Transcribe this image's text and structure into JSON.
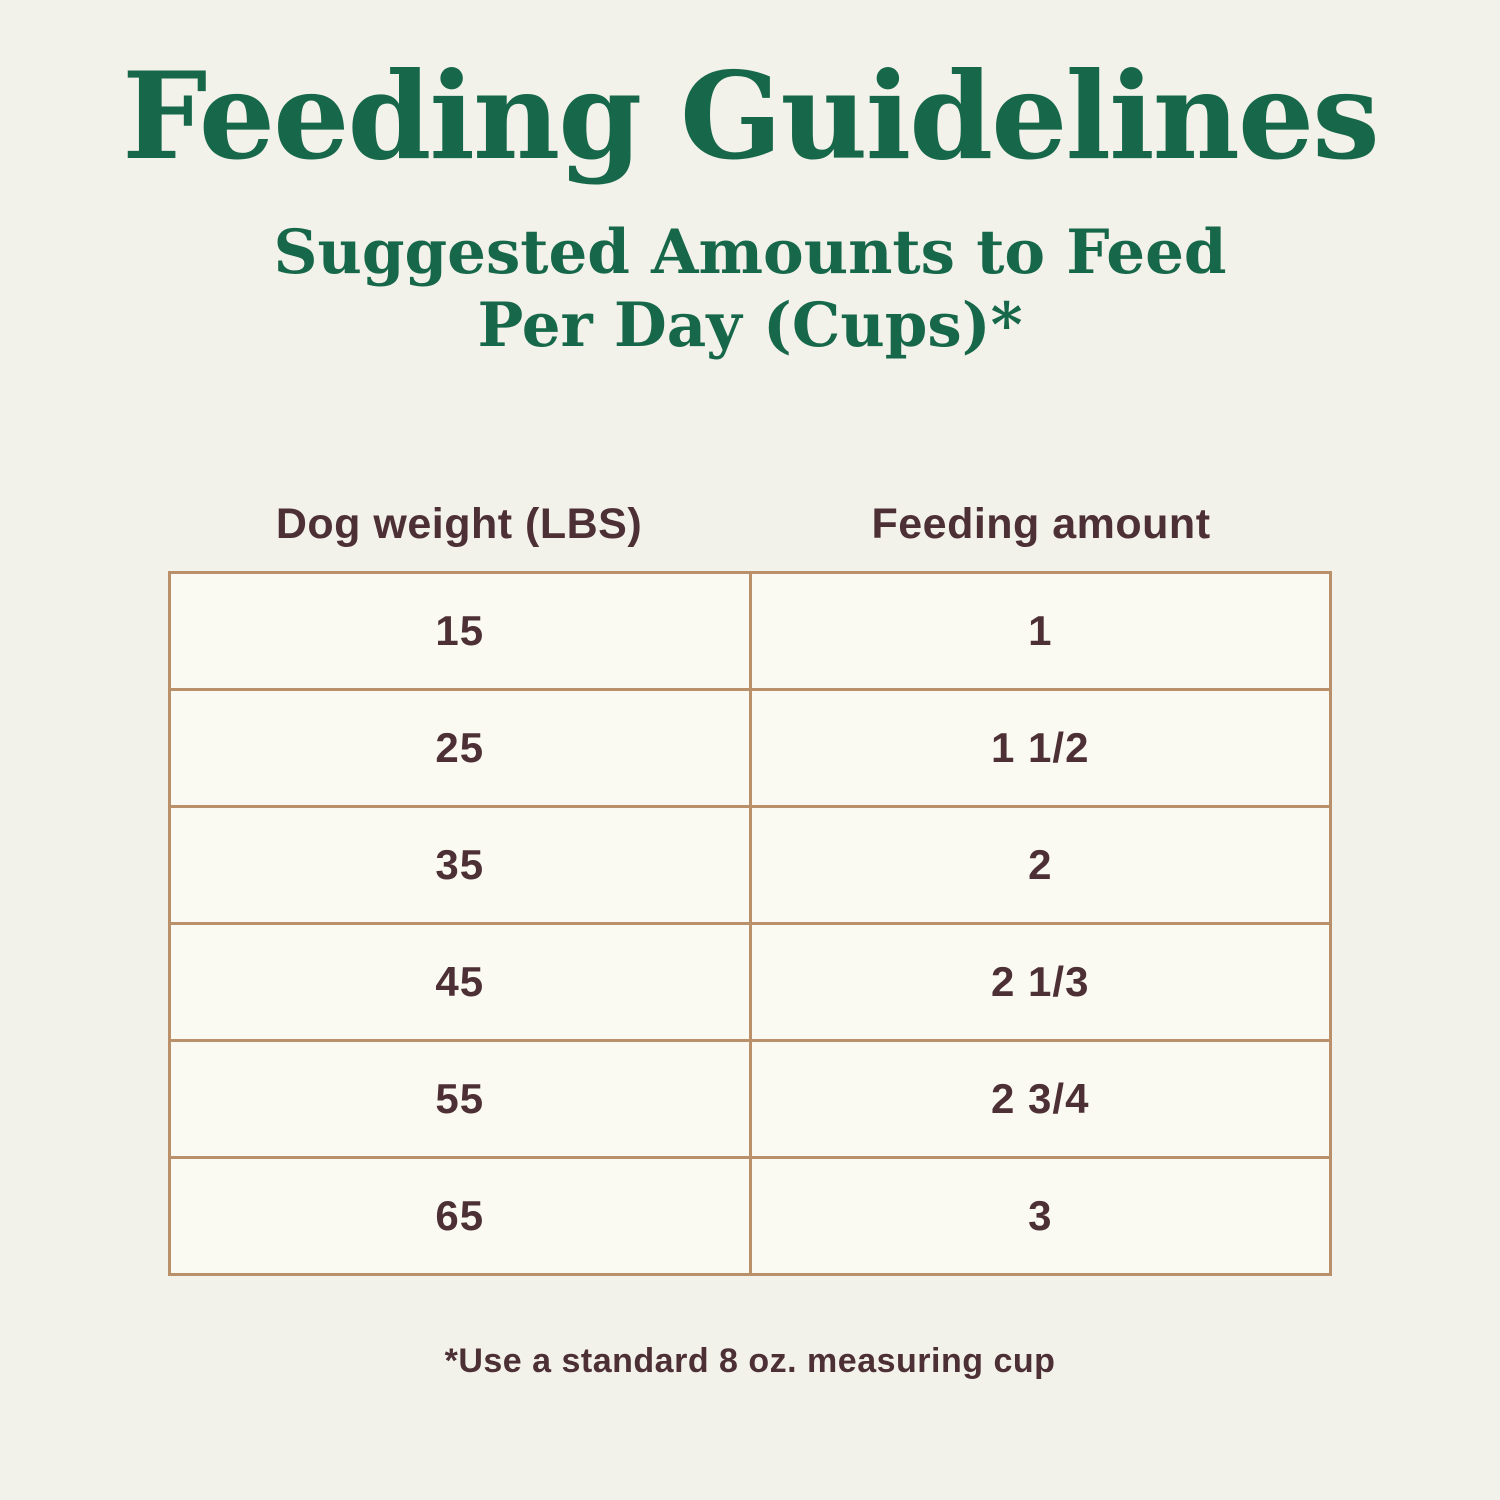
{
  "page": {
    "title": "Feeding Guidelines",
    "subtitle_line1": "Suggested Amounts to Feed",
    "subtitle_line2": "Per Day (Cups)*",
    "footnote": "*Use a standard 8 oz. measuring cup"
  },
  "table": {
    "columns": [
      "Dog weight (LBS)",
      "Feeding amount"
    ],
    "rows": [
      {
        "weight": "15",
        "amount": "1"
      },
      {
        "weight": "25",
        "amount": "1 1/2"
      },
      {
        "weight": "35",
        "amount": "2"
      },
      {
        "weight": "45",
        "amount": "2 1/3"
      },
      {
        "weight": "55",
        "amount": "2 3/4"
      },
      {
        "weight": "65",
        "amount": "3"
      }
    ]
  },
  "colors": {
    "title_green": "#17684A",
    "text_brown": "#4D3035",
    "border_tan": "#B9906A",
    "page_background": "#F2F1EA",
    "cell_background": "#FAF9F2"
  },
  "chart_data": {
    "type": "table",
    "title": "Feeding Guidelines",
    "subtitle": "Suggested Amounts to Feed Per Day (Cups)*",
    "columns": [
      "Dog weight (LBS)",
      "Feeding amount"
    ],
    "rows": [
      [
        "15",
        "1"
      ],
      [
        "25",
        "1 1/2"
      ],
      [
        "35",
        "2"
      ],
      [
        "45",
        "2 1/3"
      ],
      [
        "55",
        "2 3/4"
      ],
      [
        "65",
        "3"
      ]
    ],
    "footnote": "*Use a standard 8 oz. measuring cup"
  }
}
